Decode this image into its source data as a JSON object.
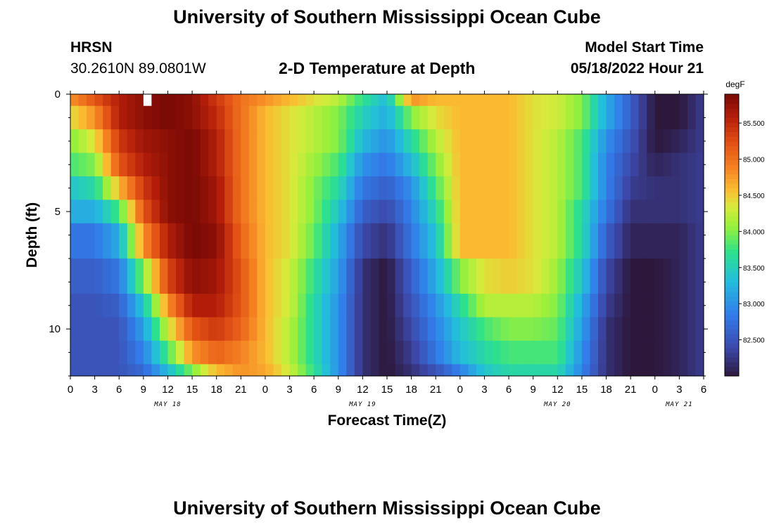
{
  "header": {
    "title": "University of Southern Mississippi Ocean Cube",
    "station": "HRSN",
    "coords": "30.2610N  89.0801W",
    "start_label": "Model Start Time",
    "start_value": "05/18/2022 Hour 21"
  },
  "footer": {
    "title": "University of Southern Mississippi Ocean Cube"
  },
  "colors": {
    "background": "#ffffff",
    "missing": "#ffffff"
  },
  "chart_data": {
    "type": "heatmap",
    "title": "2-D Temperature at Depth",
    "xlabel": "Forecast Time(Z)",
    "ylabel": "Depth (ft)",
    "x_range_hours": [
      0,
      78
    ],
    "y_range_ft": [
      0,
      12
    ],
    "y_inverted": true,
    "x_tick_labels": [
      "0",
      "3",
      "6",
      "9",
      "12",
      "15",
      "18",
      "21",
      "0",
      "3",
      "6",
      "9",
      "12",
      "15",
      "18",
      "21",
      "0",
      "3",
      "6",
      "9",
      "12",
      "15",
      "18",
      "21",
      "0",
      "3",
      "6"
    ],
    "x_tick_hours_step": 3,
    "day_labels": [
      {
        "label": "MAY 18",
        "hour": 12
      },
      {
        "label": "MAY 19",
        "hour": 36
      },
      {
        "label": "MAY 20",
        "hour": 60
      },
      {
        "label": "MAY 21",
        "hour": 75
      }
    ],
    "y_ticks": [
      0,
      5,
      10
    ],
    "y_minor_step": 1,
    "colorbar": {
      "unit": "degF",
      "min": 82.0,
      "max": 85.9,
      "labels": [
        "85.500",
        "85.000",
        "84.500",
        "84.000",
        "83.500",
        "83.000",
        "82.500"
      ],
      "label_values": [
        85.5,
        85.0,
        84.5,
        84.0,
        83.5,
        83.0,
        82.5
      ]
    },
    "depth_levels_ft": [
      0,
      1,
      2,
      3,
      4,
      5,
      6,
      8,
      9,
      10,
      11,
      12
    ],
    "time_step_hours": 1,
    "keyframe_hours": [
      0,
      3,
      6,
      9,
      12,
      15,
      18,
      21,
      24,
      27,
      30,
      33,
      36,
      39,
      42,
      45,
      48,
      51,
      54,
      57,
      60,
      63,
      66,
      69,
      72,
      75,
      78
    ],
    "keyframe_temps_by_level": [
      [
        84.8,
        85.2,
        85.6,
        85.8,
        85.9,
        85.8,
        85.4,
        85.0,
        84.8,
        84.6,
        84.4,
        84.2,
        83.7,
        83.3,
        84.8,
        84.6,
        84.6,
        84.6,
        84.6,
        84.4,
        84.3,
        84.0,
        83.2,
        82.6,
        82.0,
        82.0,
        82.3
      ],
      [
        84.4,
        84.8,
        85.6,
        85.8,
        85.9,
        85.8,
        85.5,
        85.0,
        84.6,
        84.4,
        84.2,
        84.0,
        83.5,
        83.2,
        84.0,
        84.4,
        84.6,
        84.6,
        84.6,
        84.4,
        84.3,
        84.0,
        83.2,
        82.6,
        82.0,
        82.0,
        82.3
      ],
      [
        84.0,
        84.4,
        85.4,
        85.7,
        85.8,
        85.9,
        85.6,
        85.0,
        84.6,
        84.4,
        84.2,
        84.0,
        83.3,
        83.0,
        83.6,
        84.2,
        84.6,
        84.6,
        84.6,
        84.4,
        84.2,
        83.8,
        83.0,
        82.5,
        82.0,
        82.1,
        82.3
      ],
      [
        83.8,
        84.0,
        85.2,
        85.6,
        85.8,
        85.9,
        85.6,
        85.0,
        84.6,
        84.4,
        84.1,
        83.8,
        83.0,
        82.8,
        83.3,
        84.0,
        84.6,
        84.6,
        84.6,
        84.4,
        84.2,
        83.8,
        82.9,
        82.4,
        82.1,
        82.2,
        82.3
      ],
      [
        83.4,
        83.6,
        84.6,
        85.4,
        85.8,
        85.9,
        85.7,
        85.0,
        84.6,
        84.4,
        84.0,
        83.6,
        82.8,
        82.6,
        83.0,
        83.8,
        84.6,
        84.6,
        84.6,
        84.4,
        84.2,
        83.8,
        82.9,
        82.3,
        82.2,
        82.2,
        82.3
      ],
      [
        83.2,
        83.2,
        83.8,
        85.2,
        85.8,
        85.9,
        85.7,
        85.0,
        84.6,
        84.4,
        84.0,
        83.4,
        82.6,
        82.4,
        82.9,
        83.6,
        84.6,
        84.6,
        84.6,
        84.4,
        84.2,
        83.6,
        82.8,
        82.2,
        82.2,
        82.2,
        82.3
      ],
      [
        82.8,
        82.8,
        83.2,
        84.8,
        85.6,
        85.9,
        85.8,
        85.1,
        84.6,
        84.4,
        83.9,
        83.2,
        82.4,
        82.2,
        82.8,
        83.4,
        84.6,
        84.6,
        84.6,
        84.4,
        84.2,
        83.6,
        82.6,
        82.1,
        82.1,
        82.1,
        82.3
      ],
      [
        82.6,
        82.6,
        82.8,
        84.0,
        85.3,
        85.8,
        85.7,
        85.2,
        84.6,
        84.3,
        83.7,
        83.1,
        82.2,
        82.0,
        82.6,
        83.2,
        84.0,
        84.4,
        84.5,
        84.4,
        84.1,
        83.4,
        82.4,
        82.0,
        82.0,
        82.1,
        82.3
      ],
      [
        82.5,
        82.5,
        82.6,
        83.4,
        84.8,
        85.6,
        85.6,
        85.2,
        84.6,
        84.3,
        83.6,
        83.0,
        82.2,
        82.0,
        82.5,
        83.0,
        83.6,
        84.2,
        84.2,
        84.2,
        84.0,
        83.2,
        82.3,
        82.0,
        82.0,
        82.1,
        82.3
      ],
      [
        82.5,
        82.5,
        82.5,
        83.1,
        84.3,
        85.2,
        85.4,
        85.1,
        84.6,
        84.2,
        83.6,
        83.0,
        82.2,
        82.0,
        82.4,
        82.9,
        83.4,
        83.8,
        84.0,
        84.0,
        83.9,
        83.1,
        82.2,
        82.0,
        82.0,
        82.1,
        82.3
      ],
      [
        82.5,
        82.5,
        82.5,
        82.9,
        83.8,
        84.8,
        85.1,
        84.9,
        84.6,
        84.2,
        83.6,
        83.0,
        82.2,
        82.0,
        82.3,
        82.8,
        83.3,
        83.6,
        83.8,
        83.8,
        83.8,
        83.0,
        82.2,
        82.0,
        82.0,
        82.1,
        82.3
      ],
      [
        82.5,
        82.5,
        82.5,
        82.7,
        83.3,
        84.0,
        84.6,
        84.8,
        84.7,
        84.3,
        83.7,
        83.0,
        82.2,
        82.0,
        82.2,
        82.5,
        82.9,
        83.4,
        83.6,
        83.6,
        83.6,
        82.9,
        82.2,
        82.0,
        82.0,
        82.1,
        82.3
      ]
    ],
    "missing_cells": [
      {
        "hour": 9,
        "level": 0
      }
    ]
  }
}
